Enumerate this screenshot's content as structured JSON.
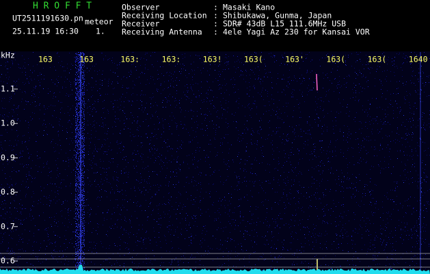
{
  "header": {
    "app": "H R O F F T",
    "filename": "UT2511191630.pn",
    "tag": "meteor",
    "datetime": "25.11.19 16:30",
    "index": "1.",
    "fields": [
      {
        "label": "Observer",
        "sep": ":",
        "value": "Masaki Kano"
      },
      {
        "label": "Receiving Location",
        "sep": ":",
        "value": "Shibukawa, Gunma, Japan"
      },
      {
        "label": "Receiver",
        "sep": ":",
        "value": "SDR# 43dB L15 111.6MHz USB"
      },
      {
        "label": "Receiving Antenna",
        "sep": ":",
        "value": "4ele Yagi Az 230 for Kansai VOR"
      }
    ]
  },
  "spectrogram": {
    "unit": "kHz",
    "y_labels": [
      "1.1",
      "1.0",
      "0.9",
      "0.8",
      "0.7",
      "0.6"
    ],
    "x_labels": [
      "163",
      "163",
      "163:",
      "163:",
      "163!",
      "163(",
      "163'",
      "163(",
      "163(",
      "1640"
    ]
  }
}
